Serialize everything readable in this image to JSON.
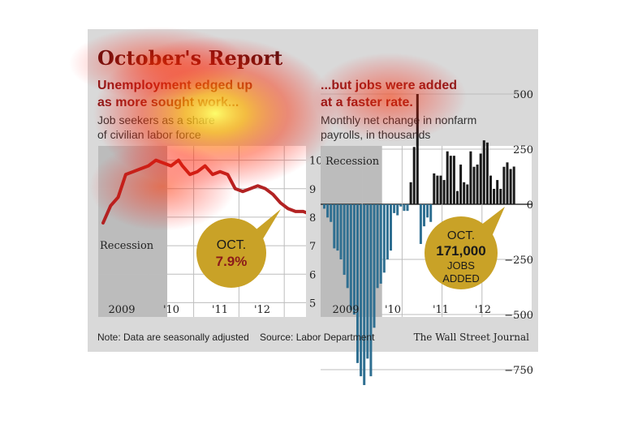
{
  "title": "October's Report",
  "left": {
    "headline_line1": "Unemployment edged up",
    "headline_line2": "as more sought work...",
    "sub_line1": "Job seekers as a share",
    "sub_line2": "of civilian labor force",
    "recession_label": "Recession",
    "callout_line1": "OCT.",
    "callout_line2": "7.9%"
  },
  "right": {
    "headline_line1": "...but jobs were added",
    "headline_line2": "at a faster rate.",
    "sub_line1": "Monthly net change in nonfarm",
    "sub_line2": "payrolls, in thousands",
    "recession_label": "Recession",
    "callout_line1": "OCT.",
    "callout_line2": "171,000",
    "callout_line3": "JOBS",
    "callout_line4": "ADDED"
  },
  "footer": {
    "note": "Note: Data are seasonally adjusted",
    "source": "Source: Labor Department",
    "credit": "The Wall Street Journal"
  },
  "colors": {
    "panel_bg": "#d9d9d9",
    "plot_bg": "#ffffff",
    "recession_shade": "#bcbcbc",
    "line": "#b22222",
    "bar_pos": "#1a1a1a",
    "bar_neg": "#2f6f91",
    "callout": "#c9a227",
    "headline": "#8b1a1a",
    "title": "#5a0f0f"
  },
  "chart_data": [
    {
      "type": "line",
      "x_tick_labels": [
        "2009",
        "'10",
        "'11",
        "'12"
      ],
      "y_tick_labels": [
        "10%",
        "9",
        "8",
        "7",
        "6",
        "5"
      ],
      "ylim": [
        4.5,
        10.5
      ],
      "recession": [
        "2008-01",
        "2009-06"
      ],
      "x": [
        "2008-01",
        "2008-03",
        "2008-05",
        "2008-07",
        "2008-09",
        "2008-11",
        "2009-01",
        "2009-03",
        "2009-05",
        "2009-07",
        "2009-09",
        "2009-10",
        "2009-12",
        "2010-02",
        "2010-04",
        "2010-06",
        "2010-08",
        "2010-10",
        "2010-12",
        "2011-02",
        "2011-04",
        "2011-06",
        "2011-08",
        "2011-10",
        "2011-12",
        "2012-02",
        "2012-04",
        "2012-06",
        "2012-08",
        "2012-09",
        "2012-10"
      ],
      "values": [
        7.8,
        8.4,
        8.7,
        9.5,
        9.6,
        9.7,
        9.8,
        10.0,
        9.9,
        9.8,
        10.0,
        9.8,
        9.5,
        9.6,
        9.8,
        9.5,
        9.6,
        9.5,
        9.0,
        8.9,
        9.0,
        9.1,
        9.0,
        8.8,
        8.5,
        8.3,
        8.2,
        8.2,
        8.1,
        7.8,
        7.9
      ]
    },
    {
      "type": "bar",
      "x_tick_labels": [
        "2009",
        "'10",
        "'11",
        "'12"
      ],
      "y_tick_labels": [
        "500",
        "250",
        "0",
        "−250",
        "−500",
        "−750"
      ],
      "ylim": [
        -850,
        500
      ],
      "recession": [
        "2008-01",
        "2009-06"
      ],
      "x": [
        "2008-01",
        "2008-02",
        "2008-03",
        "2008-04",
        "2008-05",
        "2008-06",
        "2008-07",
        "2008-08",
        "2008-09",
        "2008-10",
        "2008-11",
        "2008-12",
        "2009-01",
        "2009-02",
        "2009-03",
        "2009-04",
        "2009-05",
        "2009-06",
        "2009-07",
        "2009-08",
        "2009-09",
        "2009-10",
        "2009-11",
        "2009-12",
        "2010-01",
        "2010-02",
        "2010-03",
        "2010-04",
        "2010-05",
        "2010-06",
        "2010-07",
        "2010-08",
        "2010-09",
        "2010-10",
        "2010-11",
        "2010-12",
        "2011-01",
        "2011-02",
        "2011-03",
        "2011-04",
        "2011-05",
        "2011-06",
        "2011-07",
        "2011-08",
        "2011-09",
        "2011-10",
        "2011-11",
        "2011-12",
        "2012-01",
        "2012-02",
        "2012-03",
        "2012-04",
        "2012-05",
        "2012-06",
        "2012-07",
        "2012-08",
        "2012-09",
        "2012-10"
      ],
      "values": [
        -20,
        -60,
        -80,
        -200,
        -210,
        -250,
        -320,
        -380,
        -480,
        -500,
        -720,
        -780,
        -820,
        -700,
        -780,
        -560,
        -380,
        -360,
        -310,
        -250,
        -210,
        -40,
        -50,
        -10,
        -30,
        -30,
        100,
        260,
        500,
        -180,
        -100,
        -60,
        -80,
        140,
        130,
        130,
        110,
        240,
        220,
        220,
        60,
        180,
        100,
        90,
        240,
        170,
        180,
        230,
        290,
        280,
        130,
        70,
        110,
        70,
        170,
        190,
        160,
        171
      ]
    }
  ]
}
